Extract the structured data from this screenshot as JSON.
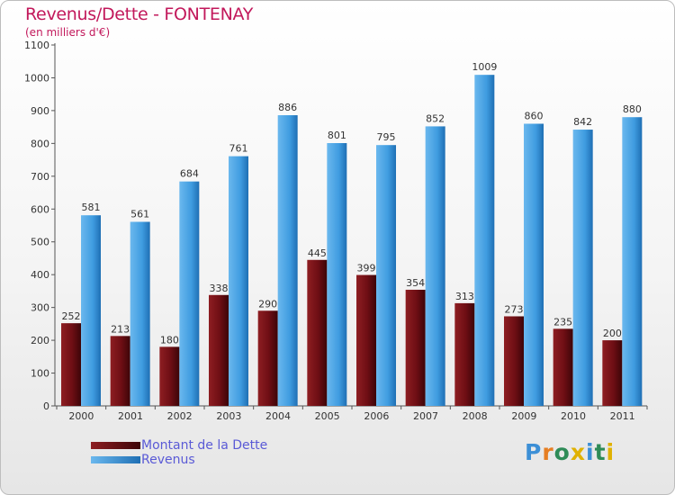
{
  "header": {
    "title": "Revenus/Dette - FONTENAY",
    "subtitle": "(en milliers d'€)"
  },
  "colors": {
    "dette": "#6e0e14",
    "revenus": "#3f9ce0",
    "title": "#c2185b",
    "legend_text": "#5a5ad6"
  },
  "legend": {
    "dette_label": "Montant de la Dette",
    "revenus_label": "Revenus"
  },
  "logo": {
    "letters": [
      "P",
      "r",
      "o",
      "x",
      "i",
      "t",
      "i"
    ],
    "colors": [
      "#3c8fd6",
      "#e67e22",
      "#2e8b57",
      "#e0b100",
      "#3c8fd6",
      "#2e8b57",
      "#e0b100"
    ]
  },
  "chart_data": {
    "type": "bar",
    "title": "Revenus/Dette - FONTENAY",
    "ylabel": "(en milliers d'€)",
    "xlabel": "",
    "ylim": [
      0,
      1100
    ],
    "yticks": [
      0,
      100,
      200,
      300,
      400,
      500,
      600,
      700,
      800,
      900,
      1000,
      1100
    ],
    "grid": false,
    "legend_position": "bottom-left",
    "categories": [
      "2000",
      "2001",
      "2002",
      "2003",
      "2004",
      "2005",
      "2006",
      "2007",
      "2008",
      "2009",
      "2010",
      "2011"
    ],
    "series": [
      {
        "name": "Montant de la Dette",
        "values": [
          252,
          213,
          180,
          338,
          290,
          445,
          399,
          354,
          313,
          273,
          235,
          200
        ]
      },
      {
        "name": "Revenus",
        "values": [
          581,
          561,
          684,
          761,
          886,
          801,
          795,
          852,
          1009,
          860,
          842,
          880
        ]
      }
    ]
  }
}
